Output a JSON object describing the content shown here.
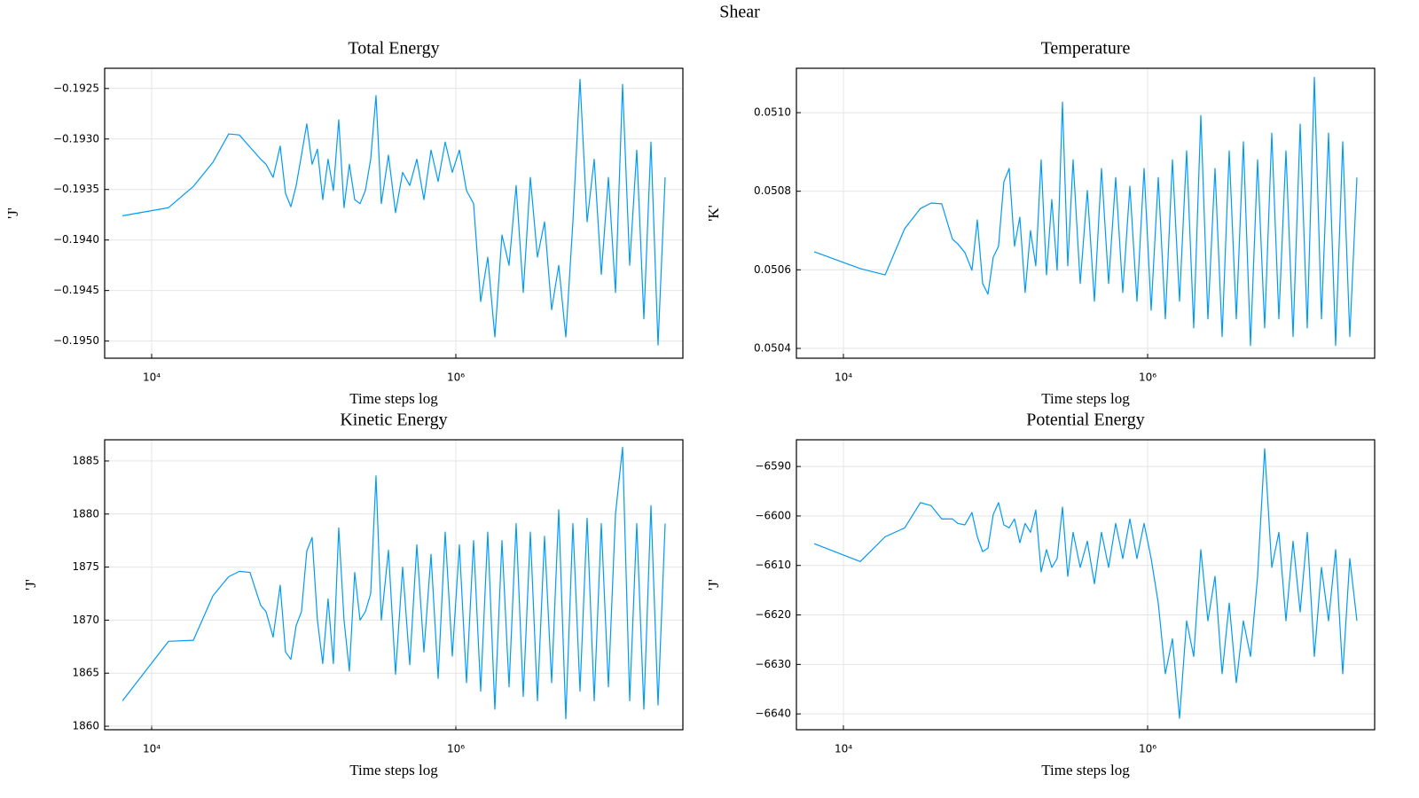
{
  "title": "Shear",
  "chart_data": [
    {
      "type": "line",
      "title": "Total Energy",
      "xlabel": "Time steps log",
      "ylabel": "'J'",
      "xscale": "log",
      "grid": true,
      "color": "#009af9",
      "xlim": [
        4909,
        31100000
      ],
      "xticks": [
        {
          "value": 10000,
          "label": "10⁴"
        },
        {
          "value": 1000000,
          "label": "10⁶"
        }
      ],
      "ylim": [
        -0.19517,
        -0.1923
      ],
      "yticks": [
        {
          "value": -0.195,
          "label": "−0.1950"
        },
        {
          "value": -0.1945,
          "label": "−0.1945"
        },
        {
          "value": -0.194,
          "label": "−0.1940"
        },
        {
          "value": -0.1935,
          "label": "−0.1935"
        },
        {
          "value": -0.193,
          "label": "−0.1930"
        },
        {
          "value": -0.1925,
          "label": "−0.1925"
        }
      ],
      "x": [
        6430,
        12900,
        18800,
        25300,
        32100,
        37700,
        44300,
        52100,
        56500,
        62900,
        70000,
        75900,
        82300,
        89200,
        96600,
        104700,
        113500,
        123000,
        133300,
        144500,
        156600,
        169800,
        184000,
        199500,
        216300,
        234500,
        254200,
        275500,
        298600,
        323600,
        360500,
        401400,
        446900,
        497600,
        554000,
        616800,
        686700,
        764600,
        851100,
        947800,
        1055000,
        1175000,
        1308000,
        1456000,
        1621000,
        1805000,
        2010000,
        2238000,
        2491000,
        2774000,
        3089000,
        3439000,
        3829000,
        4263000,
        4747000,
        5284000,
        5884000,
        6551000,
        7295000,
        8121000,
        9043000,
        10070000,
        11210000,
        12480000,
        13900000,
        15470000,
        17230000,
        19180000,
        21350000,
        23780000
      ],
      "values": [
        -0.19376,
        -0.19368,
        -0.19347,
        -0.19323,
        -0.19295,
        -0.19296,
        -0.19308,
        -0.1932,
        -0.19325,
        -0.19338,
        -0.19307,
        -0.19354,
        -0.19367,
        -0.19346,
        -0.19316,
        -0.19285,
        -0.19325,
        -0.1931,
        -0.1936,
        -0.1932,
        -0.19351,
        -0.19281,
        -0.19368,
        -0.19325,
        -0.1936,
        -0.19364,
        -0.19351,
        -0.1932,
        -0.19257,
        -0.19364,
        -0.19316,
        -0.19373,
        -0.19333,
        -0.19346,
        -0.1932,
        -0.1936,
        -0.19311,
        -0.19342,
        -0.19303,
        -0.19333,
        -0.19311,
        -0.19351,
        -0.19364,
        -0.19461,
        -0.19417,
        -0.19496,
        -0.19395,
        -0.19425,
        -0.19346,
        -0.19452,
        -0.19338,
        -0.19417,
        -0.19382,
        -0.19469,
        -0.19425,
        -0.19496,
        -0.19382,
        -0.19241,
        -0.19382,
        -0.1932,
        -0.19434,
        -0.19338,
        -0.19452,
        -0.19246,
        -0.19425,
        -0.19311,
        -0.19478,
        -0.19303,
        -0.19504,
        -0.19338
      ]
    },
    {
      "type": "line",
      "title": "Temperature",
      "xlabel": "Time steps log",
      "ylabel": "'K'",
      "xscale": "log",
      "grid": true,
      "color": "#009af9",
      "xlim": [
        4909,
        31100000
      ],
      "xticks": [
        {
          "value": 10000,
          "label": "10⁴"
        },
        {
          "value": 1000000,
          "label": "10⁶"
        }
      ],
      "ylim": [
        0.050375,
        0.051113
      ],
      "yticks": [
        0.0504,
        0.0506,
        0.0508,
        {
          "value": 0.051,
          "label": "0.0510"
        }
      ],
      "x": [
        6430,
        12900,
        18800,
        25300,
        32100,
        37700,
        44300,
        52100,
        56500,
        62900,
        70000,
        75900,
        82300,
        89200,
        96600,
        104700,
        113500,
        123000,
        133300,
        144500,
        156600,
        169800,
        184000,
        199500,
        216300,
        234500,
        254200,
        275500,
        298600,
        323600,
        360500,
        401400,
        446900,
        497600,
        554000,
        616800,
        686700,
        764600,
        851100,
        947800,
        1055000,
        1175000,
        1308000,
        1456000,
        1621000,
        1805000,
        2010000,
        2238000,
        2491000,
        2774000,
        3089000,
        3439000,
        3829000,
        4263000,
        4747000,
        5284000,
        5884000,
        6551000,
        7295000,
        8121000,
        9043000,
        10070000,
        11210000,
        12480000,
        13900000,
        15470000,
        17230000,
        19180000,
        21350000,
        23780000
      ],
      "values": [
        0.050646,
        0.050603,
        0.050587,
        0.050705,
        0.050756,
        0.05077,
        0.050768,
        0.050678,
        0.050666,
        0.050644,
        0.050599,
        0.050727,
        0.050565,
        0.050538,
        0.050632,
        0.05066,
        0.050824,
        0.050858,
        0.05066,
        0.050734,
        0.050542,
        0.0507,
        0.05061,
        0.05088,
        0.050587,
        0.050779,
        0.050599,
        0.051027,
        0.05061,
        0.05088,
        0.050565,
        0.050802,
        0.05052,
        0.050858,
        0.050565,
        0.050835,
        0.050542,
        0.050813,
        0.05052,
        0.050858,
        0.050497,
        0.050835,
        0.050475,
        0.05088,
        0.05052,
        0.050903,
        0.050452,
        0.050993,
        0.050475,
        0.050858,
        0.05043,
        0.050903,
        0.050475,
        0.050926,
        0.050407,
        0.05088,
        0.050452,
        0.050948,
        0.050475,
        0.050903,
        0.05043,
        0.050971,
        0.050452,
        0.05109,
        0.050475,
        0.050948,
        0.050407,
        0.050926,
        0.05043,
        0.050835
      ]
    },
    {
      "type": "line",
      "title": "Kinetic Energy",
      "xlabel": "Time steps log",
      "ylabel": "'J'",
      "xscale": "log",
      "grid": true,
      "color": "#009af9",
      "xlim": [
        4909,
        31100000
      ],
      "xticks": [
        {
          "value": 10000,
          "label": "10⁴"
        },
        {
          "value": 1000000,
          "label": "10⁶"
        }
      ],
      "ylim": [
        1859.67,
        1887.0
      ],
      "yticks": [
        1860,
        1865,
        1870,
        1875,
        1880,
        1885
      ],
      "x": [
        6430,
        12900,
        18800,
        25300,
        32100,
        37700,
        44300,
        52100,
        56500,
        62900,
        70000,
        75900,
        82300,
        89200,
        96600,
        104700,
        113500,
        123000,
        133300,
        144500,
        156600,
        169800,
        184000,
        199500,
        216300,
        234500,
        254200,
        275500,
        298600,
        323600,
        360500,
        401400,
        446900,
        497600,
        554000,
        616800,
        686700,
        764600,
        851100,
        947800,
        1055000,
        1175000,
        1308000,
        1456000,
        1621000,
        1805000,
        2010000,
        2238000,
        2491000,
        2774000,
        3089000,
        3439000,
        3829000,
        4263000,
        4747000,
        5284000,
        5884000,
        6551000,
        7295000,
        8121000,
        9043000,
        10070000,
        11210000,
        12480000,
        13900000,
        15470000,
        17230000,
        19180000,
        21350000,
        23780000
      ],
      "values": [
        1862.4,
        1868.0,
        1868.1,
        1872.3,
        1874.1,
        1874.6,
        1874.5,
        1871.4,
        1870.8,
        1868.4,
        1873.3,
        1867.0,
        1866.3,
        1869.5,
        1870.8,
        1876.5,
        1877.8,
        1870.0,
        1865.9,
        1872.0,
        1865.9,
        1878.7,
        1870.0,
        1865.2,
        1874.5,
        1870.0,
        1870.8,
        1872.5,
        1883.6,
        1870.0,
        1876.6,
        1864.9,
        1875.0,
        1865.8,
        1877.1,
        1867.0,
        1876.2,
        1864.5,
        1878.3,
        1866.6,
        1877.1,
        1864.1,
        1877.5,
        1863.3,
        1878.3,
        1861.6,
        1877.5,
        1863.7,
        1879.1,
        1862.8,
        1878.3,
        1862.4,
        1877.9,
        1864.1,
        1880.4,
        1860.7,
        1879.1,
        1863.3,
        1879.6,
        1862.4,
        1879.1,
        1863.7,
        1880.0,
        1886.3,
        1862.4,
        1879.1,
        1861.6,
        1880.8,
        1862.0,
        1879.1
      ]
    },
    {
      "type": "line",
      "title": "Potential Energy",
      "xlabel": "Time steps log",
      "ylabel": "'J'",
      "xscale": "log",
      "grid": true,
      "color": "#009af9",
      "xlim": [
        4909,
        31100000
      ],
      "xticks": [
        {
          "value": 10000,
          "label": "10⁴"
        },
        {
          "value": 1000000,
          "label": "10⁶"
        }
      ],
      "ylim": [
        -6643.2,
        -6584.6
      ],
      "yticks": [
        {
          "value": -6640,
          "label": "−6640"
        },
        {
          "value": -6630,
          "label": "−6630"
        },
        {
          "value": -6620,
          "label": "−6620"
        },
        {
          "value": -6610,
          "label": "−6610"
        },
        {
          "value": -6600,
          "label": "−6600"
        },
        {
          "value": -6590,
          "label": "−6590"
        }
      ],
      "x": [
        6430,
        12900,
        18800,
        25300,
        32100,
        37700,
        44300,
        52100,
        56500,
        62900,
        70000,
        75900,
        82300,
        89200,
        96600,
        104700,
        113500,
        123000,
        133300,
        144500,
        156600,
        169800,
        184000,
        199500,
        216300,
        234500,
        254200,
        275500,
        298600,
        323600,
        360500,
        401400,
        446900,
        497600,
        554000,
        616800,
        686700,
        764600,
        851100,
        947800,
        1055000,
        1175000,
        1308000,
        1456000,
        1621000,
        1805000,
        2010000,
        2238000,
        2491000,
        2774000,
        3089000,
        3439000,
        3829000,
        4263000,
        4747000,
        5284000,
        5884000,
        6551000,
        7295000,
        8121000,
        9043000,
        10070000,
        11210000,
        12480000,
        13900000,
        15470000,
        17230000,
        19180000,
        21350000,
        23780000
      ],
      "values": [
        -6605.6,
        -6609.2,
        -6604.2,
        -6602.4,
        -6597.3,
        -6597.9,
        -6600.6,
        -6600.6,
        -6601.5,
        -6601.8,
        -6599.3,
        -6604.2,
        -6607.2,
        -6606.5,
        -6599.7,
        -6597.3,
        -6601.8,
        -6602.4,
        -6600.6,
        -6605.4,
        -6601.5,
        -6603.3,
        -6598.8,
        -6611.3,
        -6606.8,
        -6610.4,
        -6608.6,
        -6598.2,
        -6612.2,
        -6603.3,
        -6610.4,
        -6605.1,
        -6613.7,
        -6603.3,
        -6610.4,
        -6601.5,
        -6608.6,
        -6600.6,
        -6608.6,
        -6601.5,
        -6608.6,
        -6617.6,
        -6631.9,
        -6624.8,
        -6640.9,
        -6621.2,
        -6628.4,
        -6606.8,
        -6621.2,
        -6612.2,
        -6631.9,
        -6617.6,
        -6633.7,
        -6621.2,
        -6628.4,
        -6612.2,
        -6586.4,
        -6610.4,
        -6603.3,
        -6621.2,
        -6605.1,
        -6619.4,
        -6603.3,
        -6628.4,
        -6610.4,
        -6621.2,
        -6606.8,
        -6631.9,
        -6608.6,
        -6621.2
      ]
    }
  ]
}
